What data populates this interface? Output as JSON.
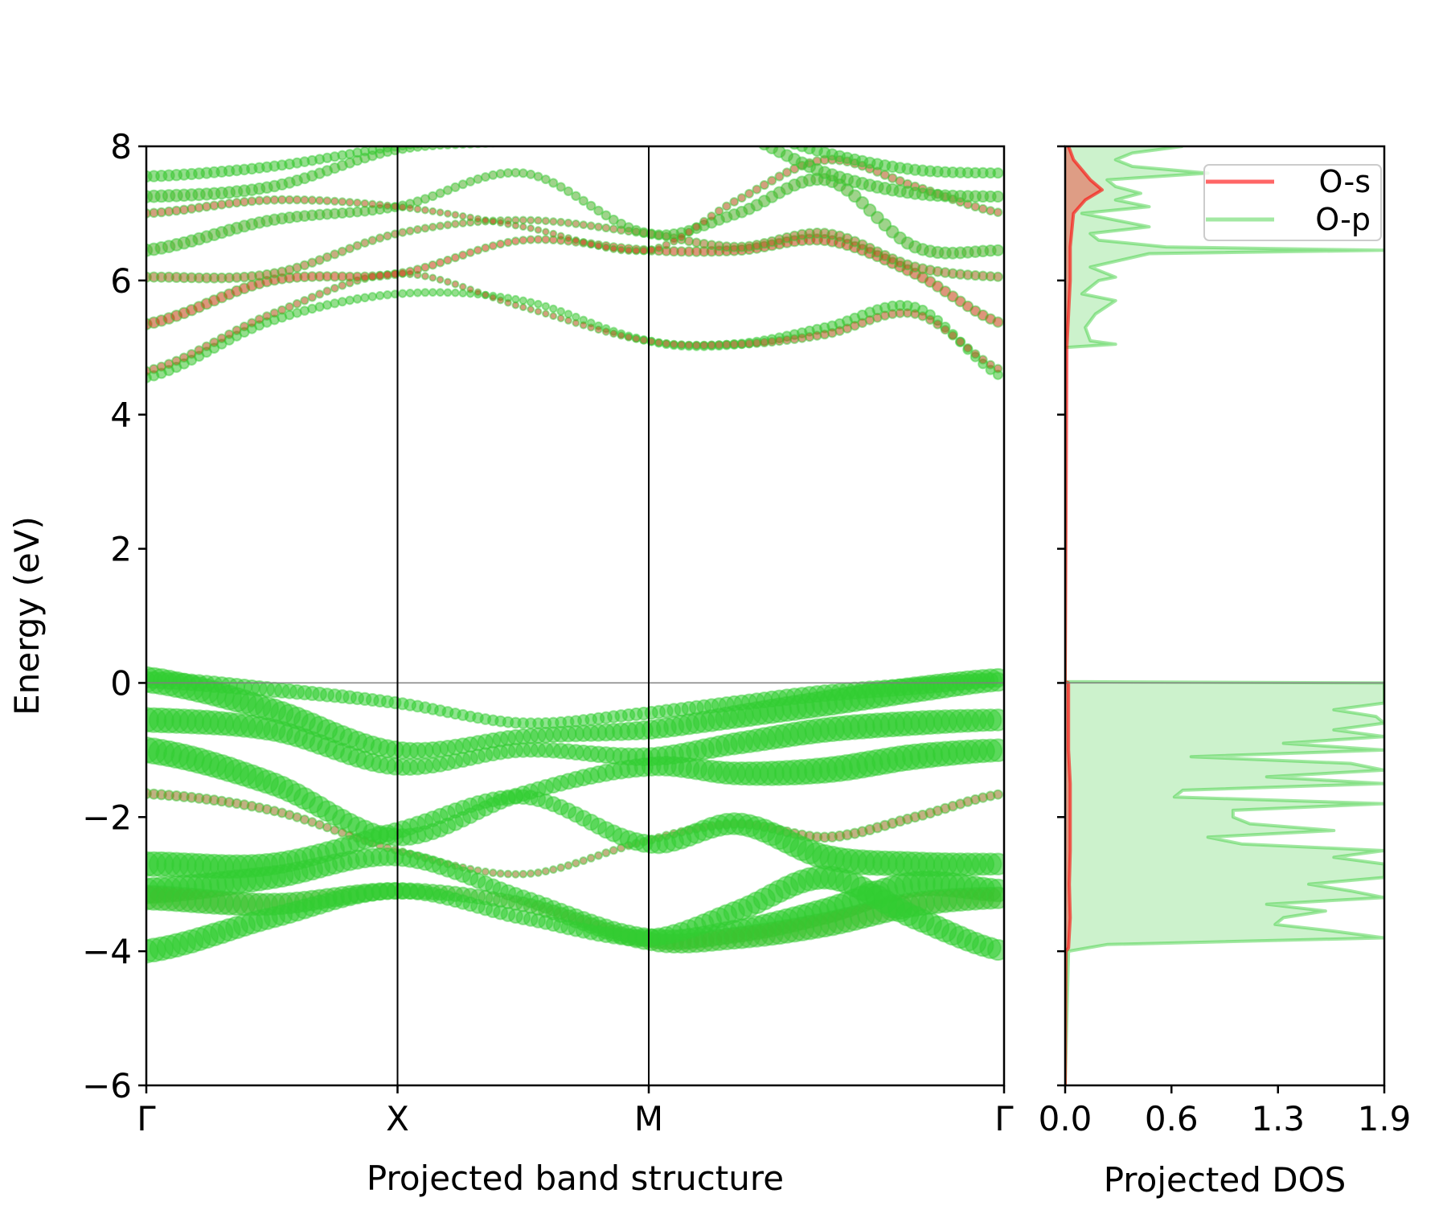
{
  "chart_data": [
    {
      "type": "scatter",
      "subtype": "projected band structure (fat bands)",
      "xlabel": "Projected band structure",
      "ylabel": "Energy (eV)",
      "ylim": [
        -6,
        8
      ],
      "yticks": [
        "8",
        "6",
        "4",
        "2",
        "0",
        "−2",
        "−4",
        "−6"
      ],
      "ytick_values": [
        8,
        6,
        4,
        2,
        0,
        -2,
        -4,
        -6
      ],
      "kpath_labels": [
        "Γ",
        "X",
        "M",
        "Γ"
      ],
      "fermi_level": 0,
      "colors": {
        "p": "#32cd32",
        "s": "#ff0000"
      },
      "bands": [
        {
          "E": [
            0.05,
            -0.1,
            -0.3,
            -0.6,
            -0.45,
            -0.3,
            -0.15,
            -0.05,
            0.05
          ],
          "p": 0.55,
          "s": 0.0
        },
        {
          "E": [
            0.05,
            -0.4,
            -1.0,
            -0.8,
            -0.7,
            -0.5,
            -0.3,
            -0.1,
            0.05
          ],
          "p": 0.95,
          "s": 0.0
        },
        {
          "E": [
            -0.55,
            -0.7,
            -1.25,
            -1.0,
            -1.1,
            -0.9,
            -0.7,
            -0.6,
            -0.55
          ],
          "p": 0.9,
          "s": 0.0
        },
        {
          "E": [
            -1.0,
            -1.5,
            -2.3,
            -1.65,
            -1.25,
            -1.35,
            -1.3,
            -1.1,
            -1.0
          ],
          "p": 0.95,
          "s": 0.0
        },
        {
          "E": [
            -1.65,
            -1.9,
            -2.5,
            -2.85,
            -2.35,
            -2.1,
            -2.3,
            -2.0,
            -1.65
          ],
          "p": 0.25,
          "s": 0.45
        },
        {
          "E": [
            -2.7,
            -2.7,
            -2.2,
            -1.7,
            -2.4,
            -2.1,
            -2.6,
            -2.7,
            -2.7
          ],
          "p": 0.9,
          "s": 0.0
        },
        {
          "E": [
            -3.1,
            -2.9,
            -2.6,
            -3.2,
            -3.8,
            -3.7,
            -3.4,
            -3.0,
            -3.1
          ],
          "p": 0.95,
          "s": 0.0
        },
        {
          "E": [
            -3.2,
            -3.3,
            -3.1,
            -3.3,
            -3.85,
            -3.8,
            -3.6,
            -3.3,
            -3.2
          ],
          "p": 0.9,
          "s": 0.05
        },
        {
          "E": [
            -4.0,
            -3.5,
            -3.1,
            -3.5,
            -3.8,
            -3.4,
            -2.9,
            -3.5,
            -4.0
          ],
          "p": 0.85,
          "s": 0.0
        },
        {
          "E": [
            4.55,
            5.4,
            5.8,
            5.7,
            5.1,
            5.05,
            5.3,
            5.6,
            4.55
          ],
          "p": 0.25,
          "s": 0.05
        },
        {
          "E": [
            4.65,
            5.5,
            6.1,
            5.6,
            5.1,
            5.05,
            5.2,
            5.5,
            4.65
          ],
          "p": 0.2,
          "s": 0.6
        },
        {
          "E": [
            5.35,
            6.0,
            6.1,
            6.6,
            6.45,
            6.45,
            6.6,
            6.1,
            5.35
          ],
          "p": 0.3,
          "s": 0.7
        },
        {
          "E": [
            6.05,
            6.1,
            6.7,
            6.9,
            6.7,
            6.5,
            6.7,
            6.2,
            6.05
          ],
          "p": 0.25,
          "s": 0.5
        },
        {
          "E": [
            6.45,
            6.9,
            7.1,
            7.6,
            6.7,
            7.0,
            7.5,
            6.5,
            6.45
          ],
          "p": 0.35,
          "s": 0.15
        },
        {
          "E": [
            7.0,
            7.2,
            7.1,
            6.8,
            6.45,
            7.2,
            7.8,
            7.4,
            7.0
          ],
          "p": 0.2,
          "s": 0.6
        },
        {
          "E": [
            7.25,
            7.4,
            7.95,
            8.1,
            8.5,
            8.2,
            7.6,
            7.3,
            7.25
          ],
          "p": 0.35,
          "s": 0.1
        },
        {
          "E": [
            7.55,
            7.7,
            8.0,
            8.2,
            8.6,
            8.3,
            7.9,
            7.65,
            7.6
          ],
          "p": 0.3,
          "s": 0.05
        }
      ]
    },
    {
      "type": "area",
      "xlabel": "Projected DOS",
      "xlim": [
        0,
        1.9
      ],
      "xticks": [
        "0.0",
        "0.6",
        "1.3",
        "1.9"
      ],
      "xtick_values": [
        0,
        0.633,
        1.267,
        1.9
      ],
      "ylim": [
        -6,
        8
      ],
      "legend_position": "top-right",
      "series": [
        {
          "name": "O-s",
          "color": "#ff0000",
          "E": [
            -6,
            -4,
            -3.95,
            -3.5,
            -3.0,
            -2.5,
            -2.0,
            -1.5,
            -1.0,
            -0.5,
            0,
            0.02,
            5.0,
            5.5,
            6.0,
            6.5,
            7.0,
            7.2,
            7.35,
            7.5,
            7.65,
            7.8,
            8.0
          ],
          "dos": [
            0,
            0.005,
            0.02,
            0.03,
            0.025,
            0.03,
            0.03,
            0.03,
            0.02,
            0.02,
            0.02,
            0,
            0.01,
            0.02,
            0.03,
            0.03,
            0.05,
            0.12,
            0.22,
            0.15,
            0.1,
            0.05,
            0.02
          ]
        },
        {
          "name": "O-p",
          "color": "#32cd32",
          "E": [
            -6,
            -4.0,
            -3.9,
            -3.8,
            -3.7,
            -3.6,
            -3.5,
            -3.4,
            -3.3,
            -3.2,
            -3.1,
            -3.0,
            -2.9,
            -2.8,
            -2.7,
            -2.6,
            -2.5,
            -2.4,
            -2.3,
            -2.2,
            -2.1,
            -2.0,
            -1.9,
            -1.8,
            -1.7,
            -1.6,
            -1.5,
            -1.4,
            -1.3,
            -1.2,
            -1.1,
            -1.0,
            -0.9,
            -0.8,
            -0.7,
            -0.6,
            -0.5,
            -0.4,
            -0.3,
            -0.2,
            -0.1,
            0.0,
            0.02,
            5.0,
            5.05,
            5.1,
            5.3,
            5.5,
            5.7,
            5.8,
            6.0,
            6.05,
            6.2,
            6.4,
            6.45,
            6.5,
            6.6,
            6.7,
            6.8,
            6.9,
            7.0,
            7.1,
            7.2,
            7.3,
            7.4,
            7.5,
            7.6,
            7.7,
            7.8,
            7.9,
            8.0
          ],
          "dos": [
            0,
            0.02,
            0.25,
            1.9,
            1.6,
            1.25,
            1.3,
            1.55,
            1.2,
            1.9,
            1.7,
            1.45,
            1.9,
            1.9,
            1.9,
            1.6,
            1.9,
            1.05,
            0.85,
            1.6,
            1.1,
            1.0,
            1.0,
            1.9,
            0.65,
            0.7,
            1.9,
            1.2,
            1.9,
            1.7,
            0.75,
            1.9,
            1.3,
            1.9,
            1.6,
            1.9,
            1.85,
            1.6,
            1.9,
            1.9,
            1.9,
            1.9,
            0,
            0,
            0.3,
            0.15,
            0.12,
            0.18,
            0.3,
            0.1,
            0.2,
            0.3,
            0.15,
            0.5,
            1.9,
            0.6,
            0.2,
            0.15,
            0.5,
            0.3,
            0.1,
            0.5,
            0.3,
            0.45,
            0.3,
            0.25,
            0.85,
            0.4,
            0.3,
            0.4,
            0.7
          ]
        }
      ]
    }
  ]
}
